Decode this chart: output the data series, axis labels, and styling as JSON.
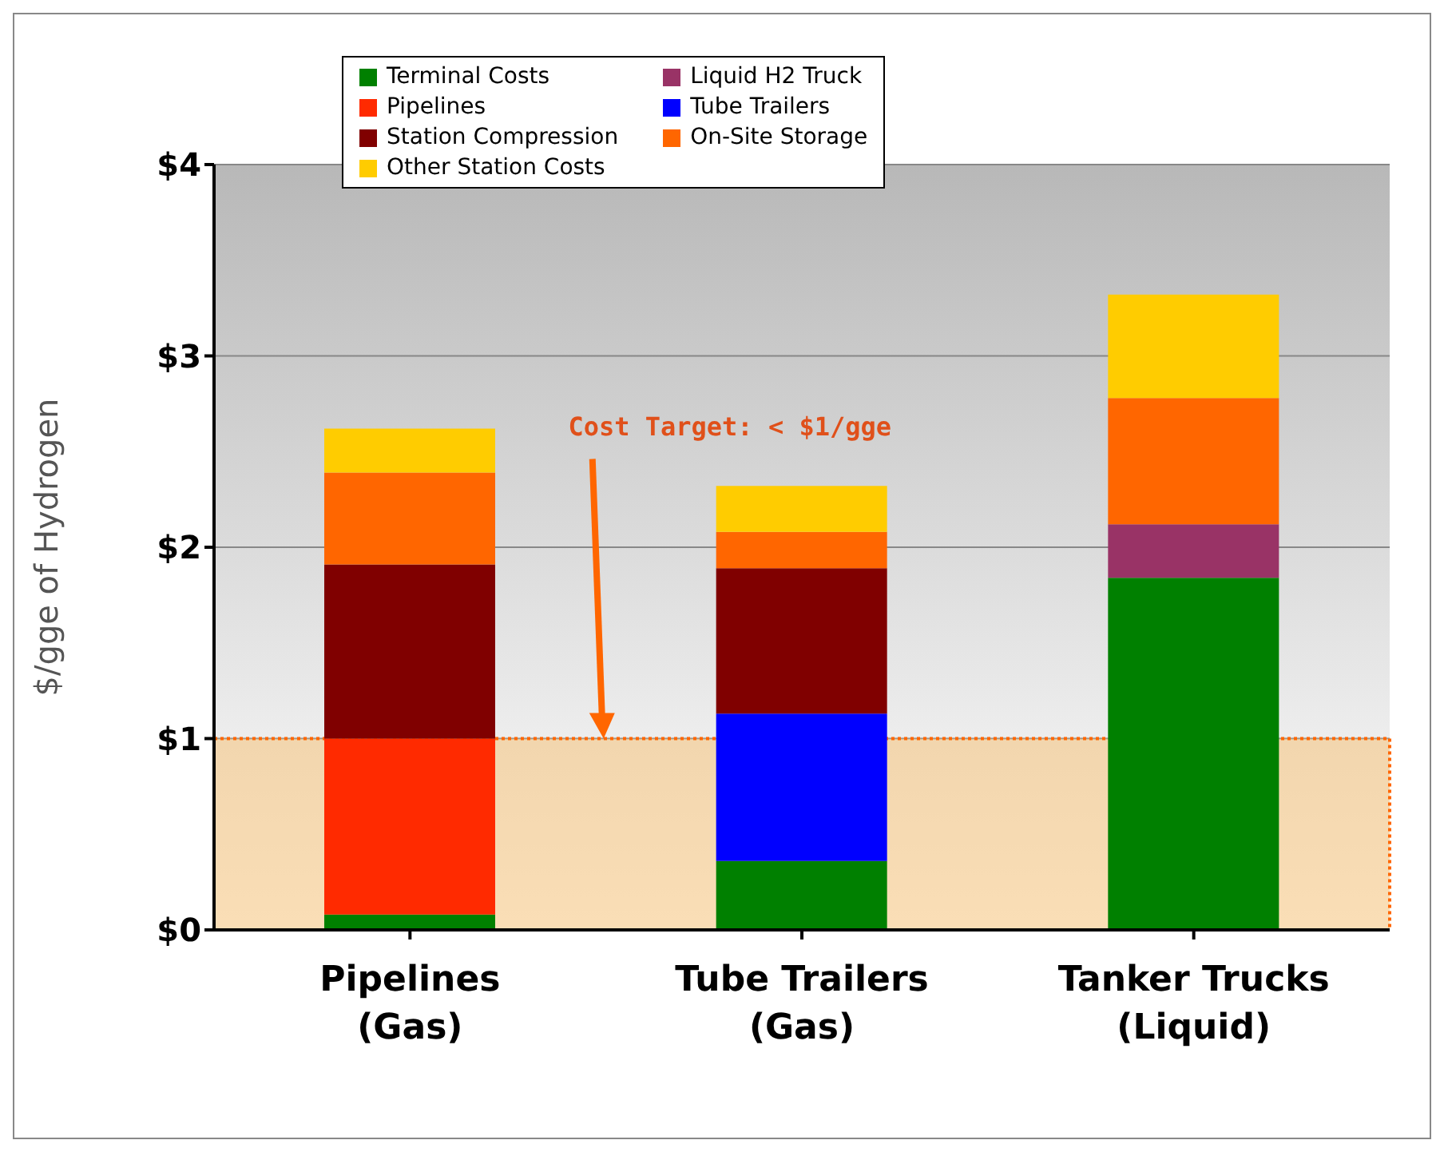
{
  "chart_data": {
    "type": "bar",
    "stacked": true,
    "ylabel": "$/gge of Hydrogen",
    "categories": [
      "Pipelines (Gas)",
      "Tube Trailers (Gas)",
      "Tanker Trucks (Liquid)"
    ],
    "series": [
      {
        "name": "Terminal Costs",
        "color": "#008000",
        "values": [
          0.08,
          0.36,
          1.84
        ]
      },
      {
        "name": "Liquid H2 Truck",
        "color": "#993366",
        "values": [
          0,
          0,
          0.28
        ]
      },
      {
        "name": "Pipelines",
        "color": "#ff2a00",
        "values": [
          0.92,
          0,
          0
        ]
      },
      {
        "name": "Tube Trailers",
        "color": "#0000ff",
        "values": [
          0,
          0.77,
          0
        ]
      },
      {
        "name": "Station Compression",
        "color": "#800000",
        "values": [
          0.91,
          0.76,
          0
        ]
      },
      {
        "name": "On-Site Storage",
        "color": "#ff6600",
        "values": [
          0.48,
          0.19,
          0.66
        ]
      },
      {
        "name": "Other Station Costs",
        "color": "#ffcc00",
        "values": [
          0.23,
          0.24,
          0.54
        ]
      }
    ],
    "ylim": [
      0,
      4
    ],
    "yticks": [
      {
        "value": 0,
        "label": "$0"
      },
      {
        "value": 1,
        "label": "$1"
      },
      {
        "value": 2,
        "label": "$2"
      },
      {
        "value": 3,
        "label": "$3"
      },
      {
        "value": 4,
        "label": "$4"
      }
    ],
    "grid": "y",
    "legend": "top",
    "annotations": [
      "Cost Target: < $1/gge"
    ],
    "bands": [
      {
        "axis": "y",
        "from": 0,
        "to": 1,
        "color": "#f5c37a"
      }
    ]
  }
}
